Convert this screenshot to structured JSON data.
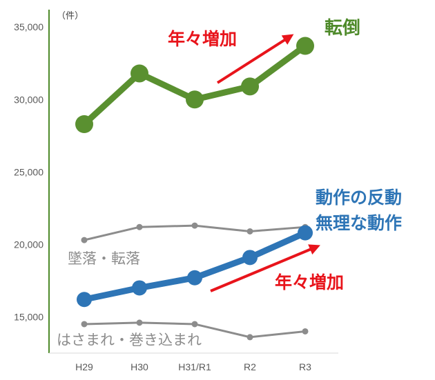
{
  "chart_data": {
    "type": "line",
    "unit_label": "（件）",
    "categories": [
      "H29",
      "H30",
      "H31/R1",
      "R2",
      "R3"
    ],
    "yticks": [
      "35,000",
      "30,000",
      "25,000",
      "20,000",
      "15,000"
    ],
    "ylim": [
      12500,
      36200
    ],
    "grid": false,
    "series": [
      {
        "key": "tentou",
        "name": "転倒",
        "color": "#5a9030",
        "values": [
          28300,
          31800,
          30000,
          30900,
          33700
        ]
      },
      {
        "key": "dosa",
        "name": "動作の反動\n無理な動作",
        "color": "#2e75b6",
        "values": [
          16200,
          17000,
          17700,
          19100,
          20800
        ]
      },
      {
        "key": "tsuiraku",
        "name": "墜落・転落",
        "color": "#8c8c8c",
        "values": [
          20300,
          21200,
          21300,
          20900,
          21200
        ]
      },
      {
        "key": "hasamare",
        "name": "はさまれ・巻き込まれ",
        "color": "#8c8c8c",
        "values": [
          14500,
          14600,
          14500,
          13600,
          14000
        ]
      }
    ],
    "annotations": [
      "年々増加",
      "年々増加"
    ]
  },
  "colors": {
    "axis": "#4e8a2a",
    "arrow": "#e8141b"
  }
}
